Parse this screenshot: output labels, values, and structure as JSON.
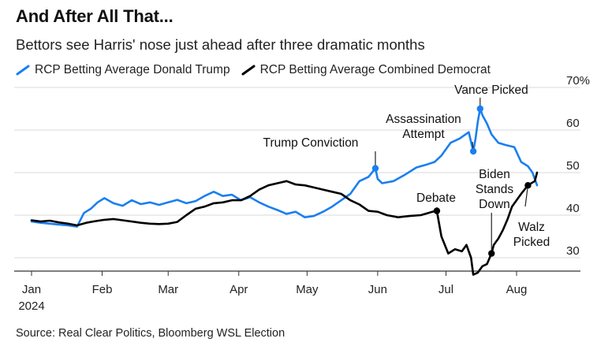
{
  "title": "And After All That...",
  "subtitle": "Bettors see Harris' nose just ahead after three dramatic months",
  "source": "Source: Real Clear Politics, Bloomberg WSL Election",
  "colors": {
    "trump": "#1a7ff0",
    "democrat": "#000000",
    "grid": "#d9d9d9",
    "axis": "#333333"
  },
  "chart_data": {
    "type": "line",
    "x_unit": "date (2024)",
    "y_unit": "%",
    "ylim": [
      25,
      73
    ],
    "yticks": [
      30,
      40,
      50,
      60,
      70
    ],
    "ytick_labels": [
      "30",
      "40",
      "50",
      "60",
      "70%"
    ],
    "xticks": [
      {
        "date": "2024-01-01",
        "label": "Jan",
        "sublabel": "2024"
      },
      {
        "date": "2024-02-01",
        "label": "Feb"
      },
      {
        "date": "2024-03-01",
        "label": "Mar"
      },
      {
        "date": "2024-04-01",
        "label": "Apr"
      },
      {
        "date": "2024-05-01",
        "label": "May"
      },
      {
        "date": "2024-06-01",
        "label": "Jun"
      },
      {
        "date": "2024-07-01",
        "label": "Jul"
      },
      {
        "date": "2024-08-01",
        "label": "Aug"
      }
    ],
    "grid": true,
    "legend_position": "top-left",
    "series": [
      {
        "key": "trump",
        "name": "RCP Betting Average Donald Trump",
        "points": [
          [
            "2024-01-01",
            38.5
          ],
          [
            "2024-01-05",
            38.2
          ],
          [
            "2024-01-09",
            38.0
          ],
          [
            "2024-01-13",
            37.8
          ],
          [
            "2024-01-17",
            37.6
          ],
          [
            "2024-01-21",
            37.3
          ],
          [
            "2024-01-24",
            40.5
          ],
          [
            "2024-01-27",
            41.5
          ],
          [
            "2024-01-30",
            43.0
          ],
          [
            "2024-02-02",
            44.0
          ],
          [
            "2024-02-06",
            42.8
          ],
          [
            "2024-02-10",
            42.2
          ],
          [
            "2024-02-14",
            43.5
          ],
          [
            "2024-02-18",
            42.6
          ],
          [
            "2024-02-22",
            43.0
          ],
          [
            "2024-02-26",
            42.4
          ],
          [
            "2024-03-01",
            43.0
          ],
          [
            "2024-03-05",
            43.6
          ],
          [
            "2024-03-09",
            42.8
          ],
          [
            "2024-03-13",
            43.3
          ],
          [
            "2024-03-17",
            44.5
          ],
          [
            "2024-03-21",
            45.5
          ],
          [
            "2024-03-25",
            44.5
          ],
          [
            "2024-03-29",
            44.8
          ],
          [
            "2024-04-02",
            43.5
          ],
          [
            "2024-04-06",
            44.2
          ],
          [
            "2024-04-10",
            43.0
          ],
          [
            "2024-04-14",
            42.0
          ],
          [
            "2024-04-18",
            41.2
          ],
          [
            "2024-04-22",
            40.3
          ],
          [
            "2024-04-26",
            40.8
          ],
          [
            "2024-04-30",
            39.5
          ],
          [
            "2024-05-04",
            39.8
          ],
          [
            "2024-05-08",
            40.8
          ],
          [
            "2024-05-12",
            42.0
          ],
          [
            "2024-05-16",
            43.5
          ],
          [
            "2024-05-20",
            45.0
          ],
          [
            "2024-05-24",
            48.0
          ],
          [
            "2024-05-28",
            49.0
          ],
          [
            "2024-05-31",
            51.0
          ],
          [
            "2024-06-01",
            48.5
          ],
          [
            "2024-06-03",
            47.5
          ],
          [
            "2024-06-08",
            48.0
          ],
          [
            "2024-06-13",
            49.5
          ],
          [
            "2024-06-18",
            51.2
          ],
          [
            "2024-06-22",
            51.8
          ],
          [
            "2024-06-26",
            52.5
          ],
          [
            "2024-06-29",
            54.0
          ],
          [
            "2024-07-03",
            57.0
          ],
          [
            "2024-07-07",
            58.0
          ],
          [
            "2024-07-11",
            59.5
          ],
          [
            "2024-07-13",
            55.0
          ],
          [
            "2024-07-14",
            58.0
          ],
          [
            "2024-07-15",
            62.0
          ],
          [
            "2024-07-16",
            65.0
          ],
          [
            "2024-07-17",
            63.5
          ],
          [
            "2024-07-19",
            61.5
          ],
          [
            "2024-07-21",
            59.0
          ],
          [
            "2024-07-24",
            57.0
          ],
          [
            "2024-07-27",
            56.5
          ],
          [
            "2024-07-31",
            56.0
          ],
          [
            "2024-08-03",
            52.5
          ],
          [
            "2024-08-06",
            51.5
          ],
          [
            "2024-08-08",
            50.0
          ],
          [
            "2024-08-10",
            47.0
          ]
        ]
      },
      {
        "key": "democrat",
        "name": "RCP Betting Average Combined Democrat",
        "points": [
          [
            "2024-01-01",
            38.8
          ],
          [
            "2024-01-05",
            38.5
          ],
          [
            "2024-01-09",
            38.7
          ],
          [
            "2024-01-13",
            38.3
          ],
          [
            "2024-01-17",
            38.0
          ],
          [
            "2024-01-21",
            37.6
          ],
          [
            "2024-01-25",
            38.2
          ],
          [
            "2024-01-29",
            38.6
          ],
          [
            "2024-02-02",
            38.9
          ],
          [
            "2024-02-06",
            39.1
          ],
          [
            "2024-02-10",
            38.8
          ],
          [
            "2024-02-14",
            38.5
          ],
          [
            "2024-02-18",
            38.2
          ],
          [
            "2024-02-22",
            38.0
          ],
          [
            "2024-02-26",
            37.9
          ],
          [
            "2024-03-01",
            38.0
          ],
          [
            "2024-03-05",
            38.4
          ],
          [
            "2024-03-09",
            40.0
          ],
          [
            "2024-03-13",
            41.5
          ],
          [
            "2024-03-17",
            42.0
          ],
          [
            "2024-03-21",
            42.8
          ],
          [
            "2024-03-25",
            43.0
          ],
          [
            "2024-03-29",
            43.5
          ],
          [
            "2024-04-02",
            43.5
          ],
          [
            "2024-04-06",
            44.5
          ],
          [
            "2024-04-10",
            46.0
          ],
          [
            "2024-04-14",
            47.0
          ],
          [
            "2024-04-18",
            47.5
          ],
          [
            "2024-04-22",
            48.0
          ],
          [
            "2024-04-26",
            47.2
          ],
          [
            "2024-04-30",
            47.0
          ],
          [
            "2024-05-04",
            46.5
          ],
          [
            "2024-05-08",
            46.0
          ],
          [
            "2024-05-12",
            45.5
          ],
          [
            "2024-05-16",
            45.0
          ],
          [
            "2024-05-20",
            43.5
          ],
          [
            "2024-05-24",
            42.5
          ],
          [
            "2024-05-28",
            41.0
          ],
          [
            "2024-06-01",
            40.8
          ],
          [
            "2024-06-05",
            40.0
          ],
          [
            "2024-06-10",
            39.5
          ],
          [
            "2024-06-15",
            39.8
          ],
          [
            "2024-06-20",
            40.0
          ],
          [
            "2024-06-25",
            40.8
          ],
          [
            "2024-06-27",
            41.0
          ],
          [
            "2024-06-29",
            35.0
          ],
          [
            "2024-07-02",
            31.0
          ],
          [
            "2024-07-05",
            32.0
          ],
          [
            "2024-07-08",
            31.5
          ],
          [
            "2024-07-10",
            33.0
          ],
          [
            "2024-07-12",
            30.0
          ],
          [
            "2024-07-13",
            26.0
          ],
          [
            "2024-07-15",
            26.5
          ],
          [
            "2024-07-17",
            28.0
          ],
          [
            "2024-07-19",
            28.5
          ],
          [
            "2024-07-21",
            31.0
          ],
          [
            "2024-07-22",
            33.0
          ],
          [
            "2024-07-24",
            34.5
          ],
          [
            "2024-07-26",
            36.5
          ],
          [
            "2024-07-28",
            39.0
          ],
          [
            "2024-07-30",
            42.0
          ],
          [
            "2024-08-01",
            43.5
          ],
          [
            "2024-08-03",
            45.0
          ],
          [
            "2024-08-06",
            47.0
          ],
          [
            "2024-08-09",
            48.0
          ],
          [
            "2024-08-10",
            50.0
          ]
        ]
      }
    ],
    "annotations": [
      {
        "label": "Trump Conviction",
        "series": "trump",
        "date": "2024-05-31",
        "value": 51.0
      },
      {
        "label": "Debate",
        "series": "democrat",
        "date": "2024-06-27",
        "value": 41.0
      },
      {
        "label": "Assassination Attempt",
        "lines": [
          "Assassination",
          "Attempt"
        ],
        "series": "trump",
        "date": "2024-07-13",
        "value": 55.0
      },
      {
        "label": "Vance Picked",
        "series": "trump",
        "date": "2024-07-16",
        "value": 65.0
      },
      {
        "label": "Biden Stands Down",
        "lines": [
          "Biden",
          "Stands",
          "Down"
        ],
        "series": "democrat",
        "date": "2024-07-21",
        "value": 31.0
      },
      {
        "label": "Walz Picked",
        "lines": [
          "Walz",
          "Picked"
        ],
        "series": "democrat",
        "date": "2024-08-06",
        "value": 47.0
      }
    ]
  }
}
